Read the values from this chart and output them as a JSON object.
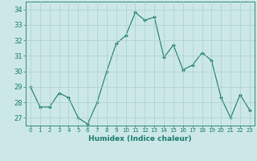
{
  "x": [
    0,
    1,
    2,
    3,
    4,
    5,
    6,
    7,
    8,
    9,
    10,
    11,
    12,
    13,
    14,
    15,
    16,
    17,
    18,
    19,
    20,
    21,
    22,
    23
  ],
  "y": [
    29,
    27.7,
    27.7,
    28.6,
    28.3,
    27.0,
    26.6,
    28.0,
    30.0,
    31.8,
    32.3,
    33.8,
    33.3,
    33.5,
    30.9,
    31.7,
    30.1,
    30.4,
    31.2,
    30.7,
    28.3,
    27.0,
    28.5,
    27.5
  ],
  "line_color": "#1a7a6e",
  "marker": "D",
  "marker_size": 2,
  "bg_color": "#cce8e6",
  "grid_color": "#aacfcc",
  "xlabel": "Humidex (Indice chaleur)",
  "ylabel_ticks": [
    27,
    28,
    29,
    30,
    31,
    32,
    33,
    34
  ],
  "xtick_labels": [
    "0",
    "1",
    "2",
    "3",
    "4",
    "5",
    "6",
    "7",
    "8",
    "9",
    "10",
    "11",
    "12",
    "13",
    "14",
    "15",
    "16",
    "17",
    "18",
    "19",
    "20",
    "21",
    "22",
    "23"
  ],
  "ylim": [
    26.5,
    34.5
  ],
  "xlim": [
    -0.5,
    23.5
  ],
  "tick_color": "#1a7a6e",
  "label_color": "#1a7a6e",
  "xlabel_fontsize": 6.5,
  "xtick_fontsize": 5.0,
  "ytick_fontsize": 6.0
}
